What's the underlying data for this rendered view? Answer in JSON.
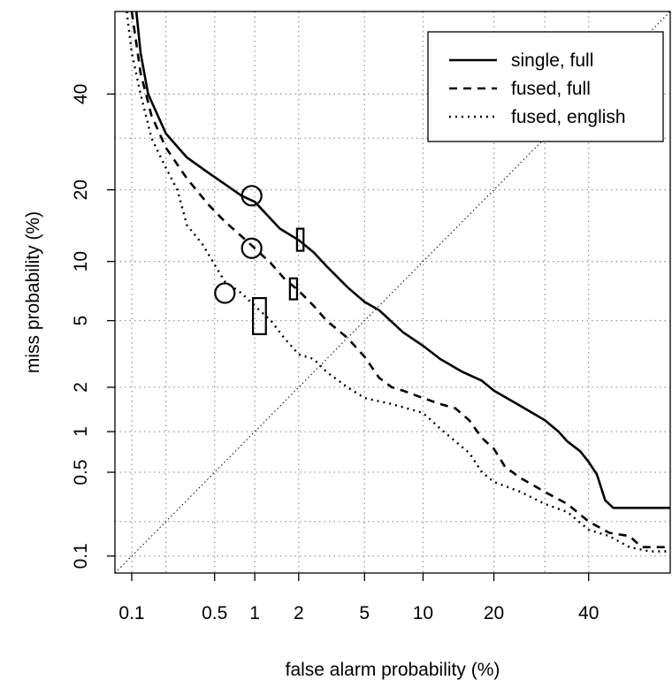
{
  "chart_data": {
    "type": "line",
    "title": "",
    "xlabel": "false alarm probability (%)",
    "ylabel": "miss probability (%)",
    "scale": "probit (normal deviate), DET curve",
    "xlim": [
      0.07,
      60
    ],
    "ylim": [
      0.07,
      60
    ],
    "x_ticks": [
      0.1,
      0.5,
      1,
      2,
      5,
      10,
      20,
      40
    ],
    "x_tick_labels": [
      "0.1",
      "0.5",
      "1",
      "2",
      "5",
      "10",
      "20",
      "40"
    ],
    "x_grid": [
      0.1,
      0.2,
      0.5,
      1,
      2,
      5,
      10,
      20,
      30,
      40
    ],
    "y_ticks": [
      0.1,
      0.5,
      1,
      2,
      5,
      10,
      20,
      40
    ],
    "y_tick_labels": [
      "0.1",
      "0.5",
      "1",
      "2",
      "5",
      "10",
      "20",
      "40"
    ],
    "y_grid": [
      0.1,
      0.2,
      0.5,
      1,
      2,
      5,
      10,
      20,
      30,
      40
    ],
    "grid": true,
    "legend_position": "top-right",
    "series": [
      {
        "name": "single, full",
        "style": "solid",
        "points": [
          [
            0.11,
            60
          ],
          [
            0.12,
            50
          ],
          [
            0.14,
            40
          ],
          [
            0.2,
            31
          ],
          [
            0.3,
            26
          ],
          [
            0.45,
            23
          ],
          [
            0.6,
            21
          ],
          [
            0.8,
            19
          ],
          [
            1.0,
            18
          ],
          [
            1.5,
            14
          ],
          [
            2.0,
            12.5
          ],
          [
            2.5,
            11
          ],
          [
            3.0,
            9.5
          ],
          [
            4.0,
            7.5
          ],
          [
            5.0,
            6.3
          ],
          [
            6.0,
            5.7
          ],
          [
            8.0,
            4.3
          ],
          [
            10,
            3.6
          ],
          [
            12,
            3.0
          ],
          [
            15,
            2.5
          ],
          [
            18,
            2.2
          ],
          [
            20,
            1.9
          ],
          [
            25,
            1.5
          ],
          [
            30,
            1.2
          ],
          [
            33,
            1.0
          ],
          [
            35,
            0.85
          ],
          [
            38,
            0.72
          ],
          [
            40,
            0.6
          ],
          [
            42,
            0.48
          ],
          [
            44,
            0.3
          ],
          [
            46,
            0.26
          ],
          [
            60,
            0.26
          ]
        ]
      },
      {
        "name": "fused, full",
        "style": "dashed",
        "points": [
          [
            0.1,
            60
          ],
          [
            0.12,
            45
          ],
          [
            0.15,
            35
          ],
          [
            0.2,
            28
          ],
          [
            0.3,
            22
          ],
          [
            0.45,
            17.5
          ],
          [
            0.6,
            15
          ],
          [
            0.8,
            13
          ],
          [
            1.0,
            11.5
          ],
          [
            1.3,
            9.8
          ],
          [
            1.6,
            8.3
          ],
          [
            2.0,
            7.2
          ],
          [
            2.5,
            6.0
          ],
          [
            3.0,
            5.0
          ],
          [
            4.0,
            4.0
          ],
          [
            5.0,
            3.1
          ],
          [
            6.0,
            2.3
          ],
          [
            7.0,
            2.0
          ],
          [
            8.0,
            1.9
          ],
          [
            10,
            1.7
          ],
          [
            12,
            1.55
          ],
          [
            14,
            1.45
          ],
          [
            16,
            1.2
          ],
          [
            18,
            0.9
          ],
          [
            20,
            0.75
          ],
          [
            22,
            0.55
          ],
          [
            25,
            0.45
          ],
          [
            30,
            0.35
          ],
          [
            35,
            0.28
          ],
          [
            40,
            0.2
          ],
          [
            45,
            0.16
          ],
          [
            50,
            0.15
          ],
          [
            53,
            0.12
          ],
          [
            60,
            0.12
          ]
        ]
      },
      {
        "name": "fused, english",
        "style": "dotted",
        "points": [
          [
            0.09,
            60
          ],
          [
            0.1,
            50
          ],
          [
            0.12,
            40
          ],
          [
            0.15,
            30
          ],
          [
            0.2,
            24
          ],
          [
            0.25,
            20
          ],
          [
            0.3,
            14.5
          ],
          [
            0.4,
            12
          ],
          [
            0.6,
            8
          ],
          [
            0.8,
            7.0
          ],
          [
            1.0,
            6.0
          ],
          [
            1.3,
            5.0
          ],
          [
            1.6,
            4.0
          ],
          [
            2.0,
            3.2
          ],
          [
            2.5,
            3.0
          ],
          [
            3.0,
            2.5
          ],
          [
            4.0,
            2.0
          ],
          [
            5.0,
            1.7
          ],
          [
            7.0,
            1.55
          ],
          [
            10,
            1.35
          ],
          [
            12,
            1.05
          ],
          [
            14,
            0.85
          ],
          [
            16,
            0.7
          ],
          [
            18,
            0.5
          ],
          [
            20,
            0.42
          ],
          [
            25,
            0.35
          ],
          [
            30,
            0.28
          ],
          [
            35,
            0.24
          ],
          [
            40,
            0.17
          ],
          [
            45,
            0.15
          ],
          [
            50,
            0.12
          ],
          [
            55,
            0.11
          ],
          [
            60,
            0.11
          ]
        ]
      },
      {
        "name": "chance",
        "style": "thin-dotted",
        "points": [
          [
            0.07,
            0.07
          ],
          [
            60,
            60
          ]
        ]
      }
    ],
    "markers": [
      {
        "shape": "circle",
        "x": 0.95,
        "y": 19
      },
      {
        "shape": "circle",
        "x": 0.95,
        "y": 11.5
      },
      {
        "shape": "circle",
        "x": 0.6,
        "y": 7
      },
      {
        "shape": "rectangle",
        "x": [
          1.75,
          1.95
        ],
        "y": [
          6.5,
          8.3
        ]
      },
      {
        "shape": "rectangle",
        "x": [
          1.95,
          2.15
        ],
        "y": [
          11.2,
          14
        ]
      },
      {
        "shape": "rectangle",
        "x": [
          0.97,
          1.2
        ],
        "y": [
          4.2,
          6.6
        ]
      }
    ]
  }
}
